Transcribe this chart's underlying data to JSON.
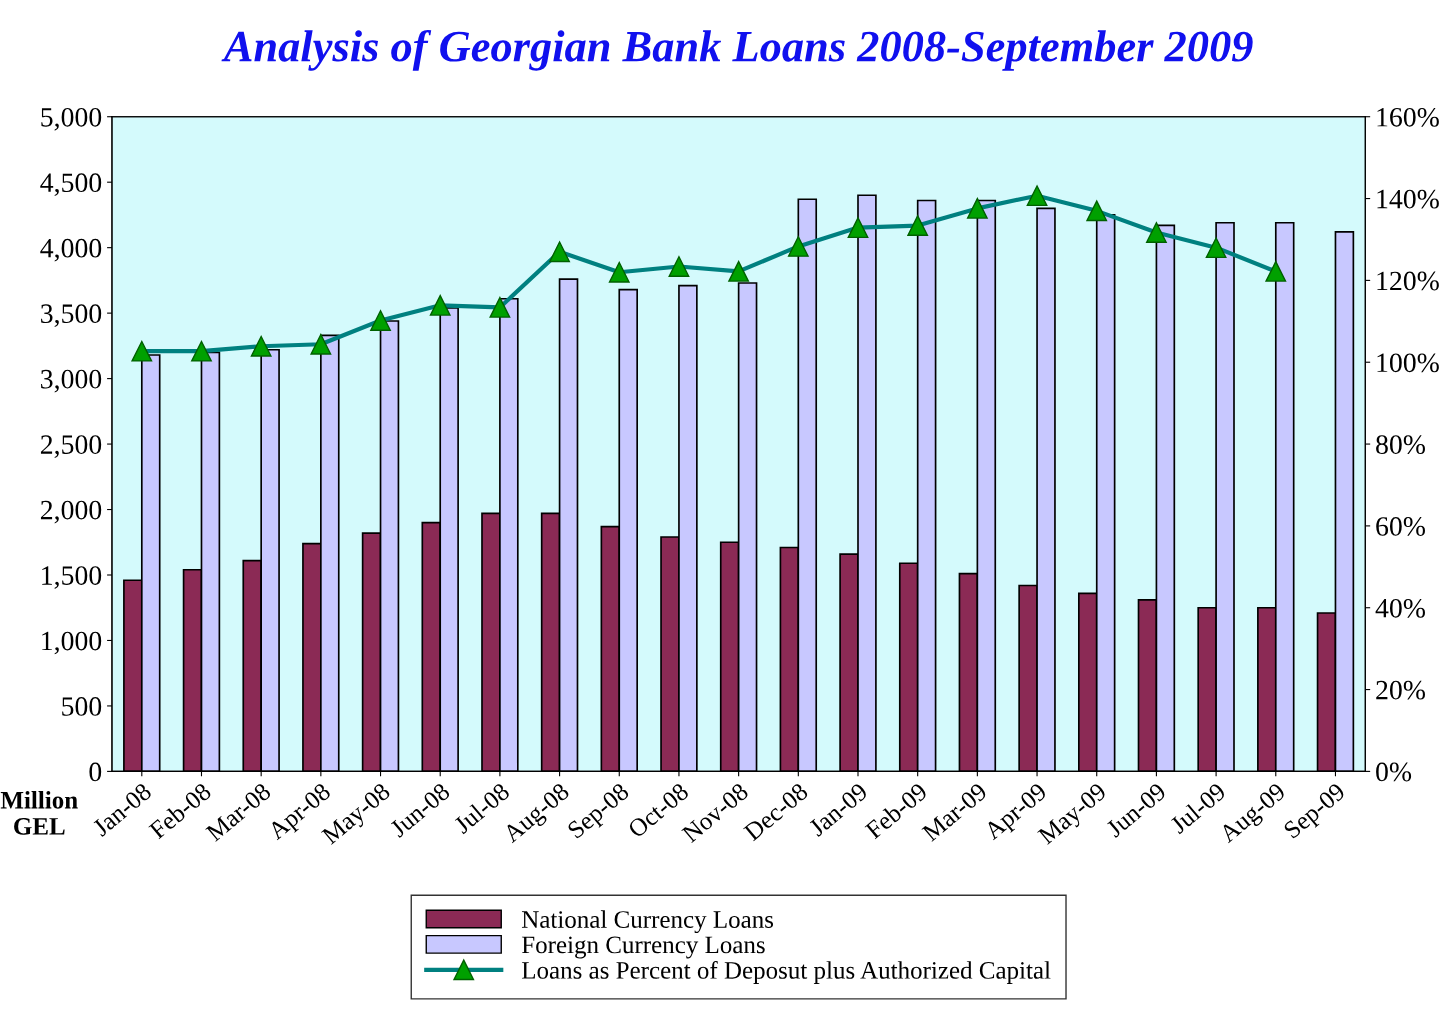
{
  "chart_data": {
    "type": "bar",
    "title": "Analysis of Georgian Bank Loans 2008-September 2009",
    "ylabel": "Million GEL",
    "categories": [
      "Jan-08",
      "Feb-08",
      "Mar-08",
      "Apr-08",
      "May-08",
      "Jun-08",
      "Jul-08",
      "Aug-08",
      "Sep-08",
      "Oct-08",
      "Nov-08",
      "Dec-08",
      "Jan-09",
      "Feb-09",
      "Mar-09",
      "Apr-09",
      "May-09",
      "Jun-09",
      "Jul-09",
      "Aug-09",
      "Sep-09"
    ],
    "series": [
      {
        "name": "National Currency Loans",
        "color": "#8b2a55",
        "values": [
          1460,
          1540,
          1610,
          1740,
          1820,
          1900,
          1970,
          1970,
          1870,
          1790,
          1750,
          1710,
          1660,
          1590,
          1510,
          1420,
          1360,
          1310,
          1250,
          1250,
          1210
        ]
      },
      {
        "name": "Foreign Currency Loans",
        "color": "#c8c8ff",
        "values": [
          3180,
          3200,
          3220,
          3330,
          3440,
          3540,
          3610,
          3760,
          3680,
          3710,
          3730,
          4370,
          4400,
          4360,
          4360,
          4300,
          4250,
          4170,
          4190,
          4190,
          4120
        ]
      },
      {
        "name": "Loans as Percent of Deposut plus Authorized Capital",
        "type": "line",
        "axis": "y2",
        "color": "#008080",
        "values": [
          102.7,
          102.7,
          103.9,
          104.4,
          110.2,
          113.9,
          113.4,
          127,
          122,
          123.4,
          122.2,
          128.3,
          132.9,
          133.4,
          137.6,
          140.7,
          137,
          131.7,
          128,
          122.2,
          null
        ]
      }
    ],
    "ylim": [
      0,
      5000
    ],
    "yticks": [
      0,
      {
        "value": 500,
        "label": "500"
      },
      {
        "value": 1000,
        "label": "1,000"
      },
      {
        "value": 1500,
        "label": "1,500"
      },
      {
        "value": 2000,
        "label": "2,000"
      },
      {
        "value": 2500,
        "label": "2,500"
      },
      {
        "value": 3000,
        "label": "3,000"
      },
      {
        "value": 3500,
        "label": "3,500"
      },
      {
        "value": 4000,
        "label": "4,000"
      },
      {
        "value": 4500,
        "label": "4,500"
      },
      {
        "value": 5000,
        "label": "5,000"
      }
    ],
    "y2lim": [
      0,
      160
    ],
    "y2ticks": [
      {
        "value": 0,
        "label": "0%"
      },
      {
        "value": 20,
        "label": "20%"
      },
      {
        "value": 40,
        "label": "40%"
      },
      {
        "value": 60,
        "label": "60%"
      },
      {
        "value": 80,
        "label": "80%"
      },
      {
        "value": 100,
        "label": "100%"
      },
      {
        "value": 120,
        "label": "120%"
      },
      {
        "value": 140,
        "label": "140%"
      },
      {
        "value": 160,
        "label": "160%"
      }
    ],
    "marker": "triangle",
    "grid": false,
    "legend": "bottom"
  }
}
